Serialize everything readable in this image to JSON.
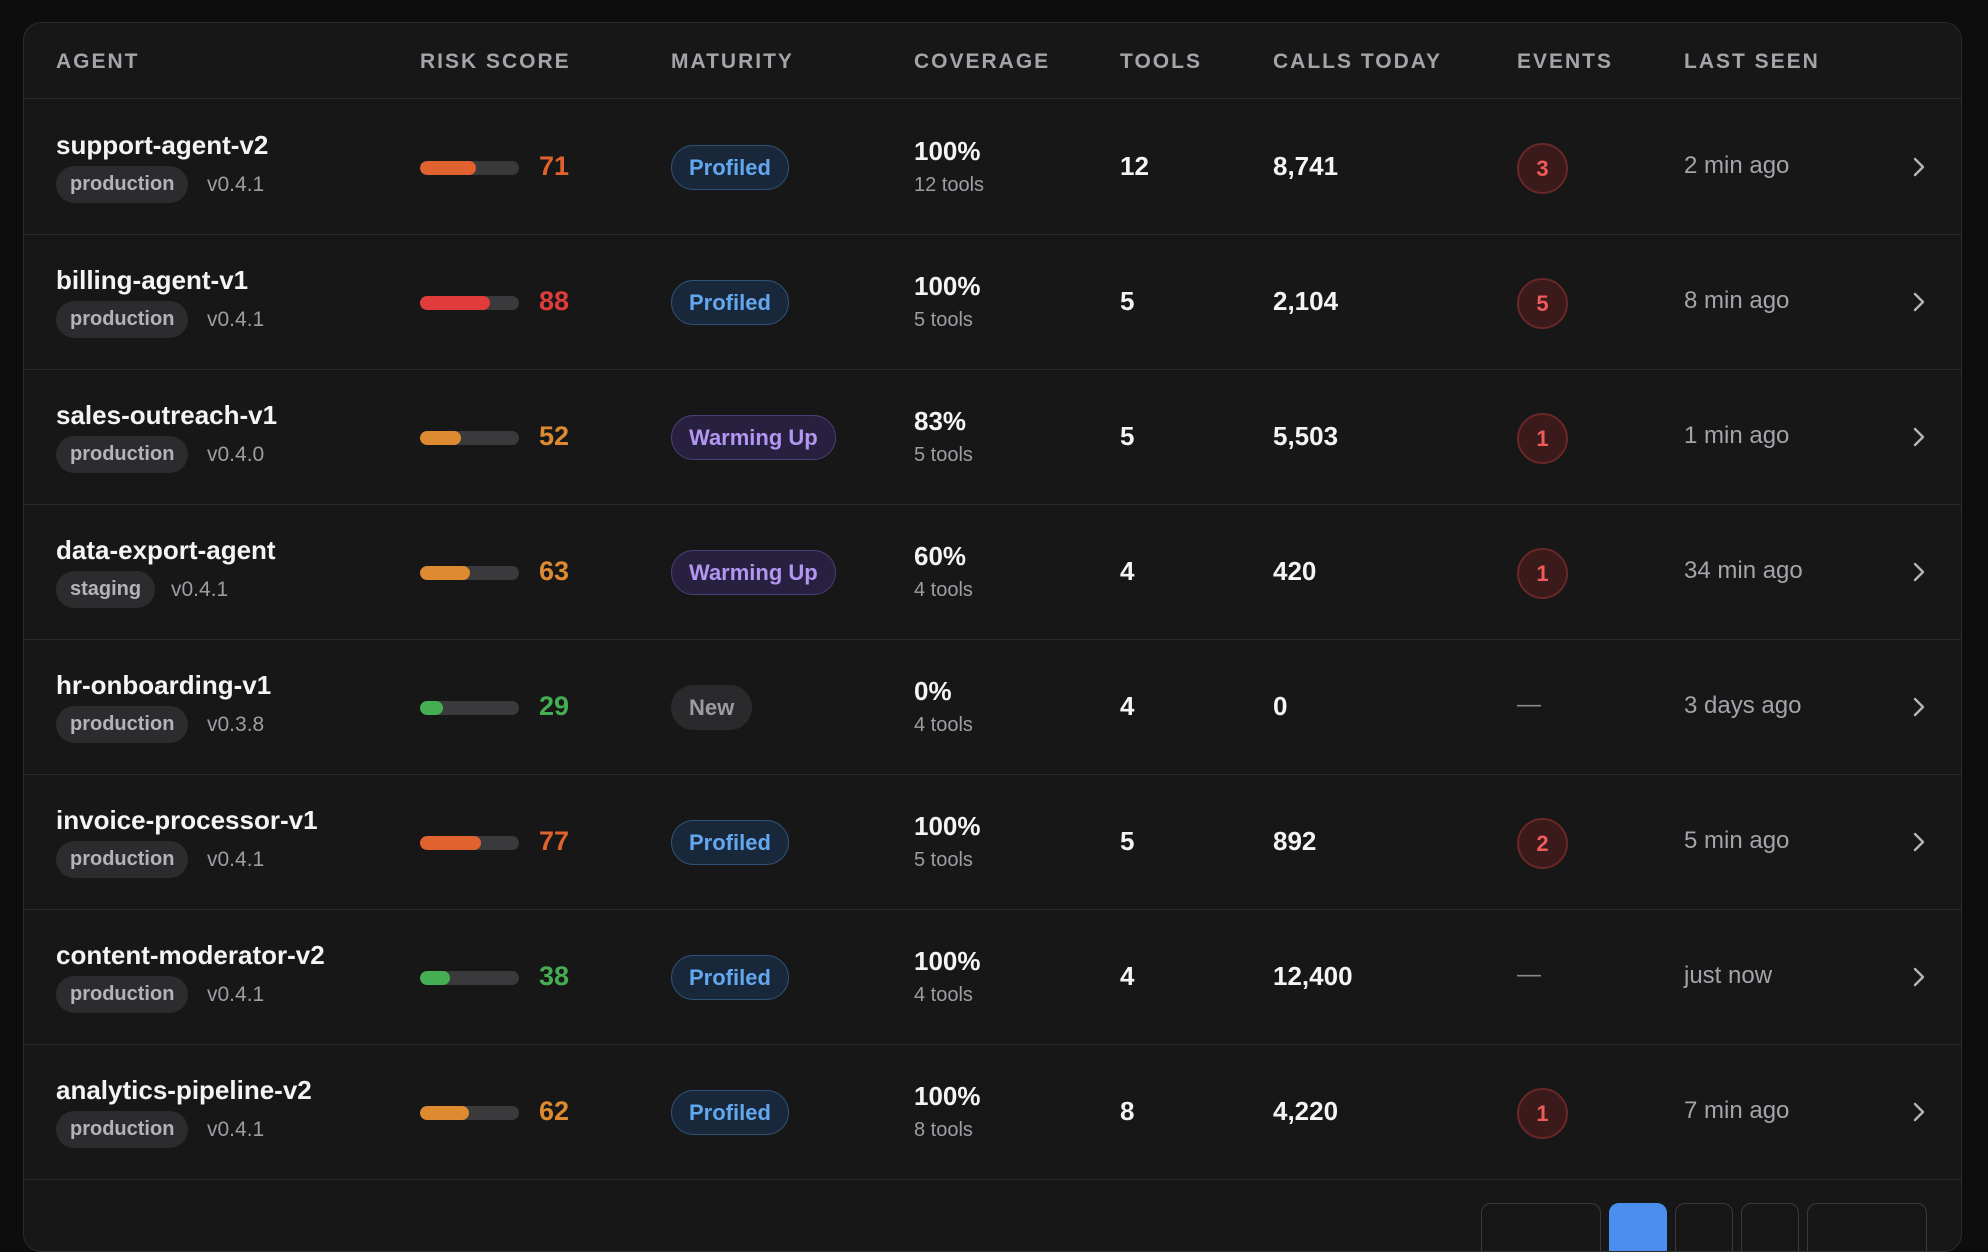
{
  "headers": {
    "agent": "AGENT",
    "risk": "RISK SCORE",
    "maturity": "MATURITY",
    "coverage": "COVERAGE",
    "tools": "TOOLS",
    "calls": "CALLS TODAY",
    "events": "EVENTS",
    "last_seen": "LAST SEEN"
  },
  "colors": {
    "risk_high": "#e03c3c",
    "risk_orange_red": "#e0622e",
    "risk_orange": "#dd8a30",
    "risk_low": "#45ad52"
  },
  "rows": [
    {
      "name": "support-agent-v2",
      "env": "production",
      "version": "v0.4.1",
      "risk": 71,
      "risk_color": "#e0622e",
      "maturity": "Profiled",
      "maturity_type": "profiled",
      "coverage": "100%",
      "coverage_tools": "12 tools",
      "tools": "12",
      "calls": "8,741",
      "events": "3",
      "last_seen": "2 min ago"
    },
    {
      "name": "billing-agent-v1",
      "env": "production",
      "version": "v0.4.1",
      "risk": 88,
      "risk_color": "#e03c3c",
      "maturity": "Profiled",
      "maturity_type": "profiled",
      "coverage": "100%",
      "coverage_tools": "5 tools",
      "tools": "5",
      "calls": "2,104",
      "events": "5",
      "last_seen": "8 min ago"
    },
    {
      "name": "sales-outreach-v1",
      "env": "production",
      "version": "v0.4.0",
      "risk": 52,
      "risk_color": "#dd8a30",
      "maturity": "Warming Up",
      "maturity_type": "warming",
      "coverage": "83%",
      "coverage_tools": "5 tools",
      "tools": "5",
      "calls": "5,503",
      "events": "1",
      "last_seen": "1 min ago"
    },
    {
      "name": "data-export-agent",
      "env": "staging",
      "version": "v0.4.1",
      "risk": 63,
      "risk_color": "#dd8a30",
      "maturity": "Warming Up",
      "maturity_type": "warming",
      "coverage": "60%",
      "coverage_tools": "4 tools",
      "tools": "4",
      "calls": "420",
      "events": "1",
      "last_seen": "34 min ago"
    },
    {
      "name": "hr-onboarding-v1",
      "env": "production",
      "version": "v0.3.8",
      "risk": 29,
      "risk_color": "#45ad52",
      "maturity": "New",
      "maturity_type": "new",
      "coverage": "0%",
      "coverage_tools": "4 tools",
      "tools": "4",
      "calls": "0",
      "events": "—",
      "last_seen": "3 days ago"
    },
    {
      "name": "invoice-processor-v1",
      "env": "production",
      "version": "v0.4.1",
      "risk": 77,
      "risk_color": "#e0622e",
      "maturity": "Profiled",
      "maturity_type": "profiled",
      "coverage": "100%",
      "coverage_tools": "5 tools",
      "tools": "5",
      "calls": "892",
      "events": "2",
      "last_seen": "5 min ago"
    },
    {
      "name": "content-moderator-v2",
      "env": "production",
      "version": "v0.4.1",
      "risk": 38,
      "risk_color": "#45ad52",
      "maturity": "Profiled",
      "maturity_type": "profiled",
      "coverage": "100%",
      "coverage_tools": "4 tools",
      "tools": "4",
      "calls": "12,400",
      "events": "—",
      "last_seen": "just now"
    },
    {
      "name": "analytics-pipeline-v2",
      "env": "production",
      "version": "v0.4.1",
      "risk": 62,
      "risk_color": "#dd8a30",
      "maturity": "Profiled",
      "maturity_type": "profiled",
      "coverage": "100%",
      "coverage_tools": "8 tools",
      "tools": "8",
      "calls": "4,220",
      "events": "1",
      "last_seen": "7 min ago"
    }
  ],
  "icons": {
    "row_action": "chevron-right-icon"
  }
}
